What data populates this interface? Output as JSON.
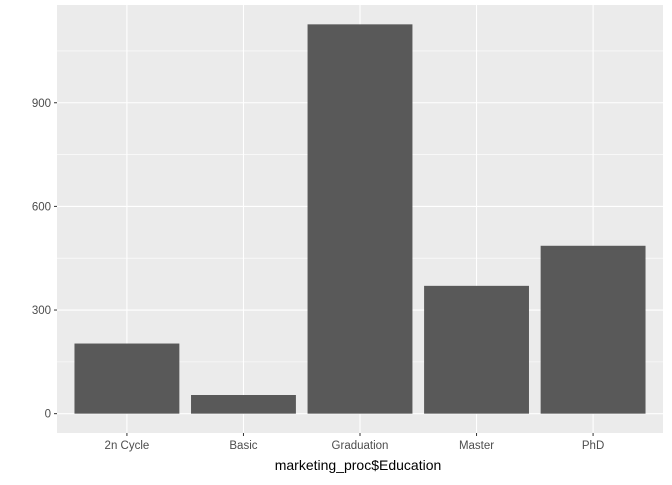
{
  "chart_data": {
    "type": "bar",
    "categories": [
      "2n Cycle",
      "Basic",
      "Graduation",
      "Master",
      "PhD"
    ],
    "values": [
      203,
      54,
      1127,
      370,
      486
    ],
    "xlabel": "marketing_proc$Education",
    "ylabel": "",
    "yticks": [
      0,
      300,
      600,
      900
    ],
    "ylim": [
      -56,
      1183
    ],
    "grid": true,
    "legend": "none",
    "colors": {
      "panel_background": "#EBEBEB",
      "grid_major": "#FFFFFF",
      "bar_fill": "#595959",
      "axis_text": "#4D4D4D",
      "axis_title": "#000000"
    }
  }
}
